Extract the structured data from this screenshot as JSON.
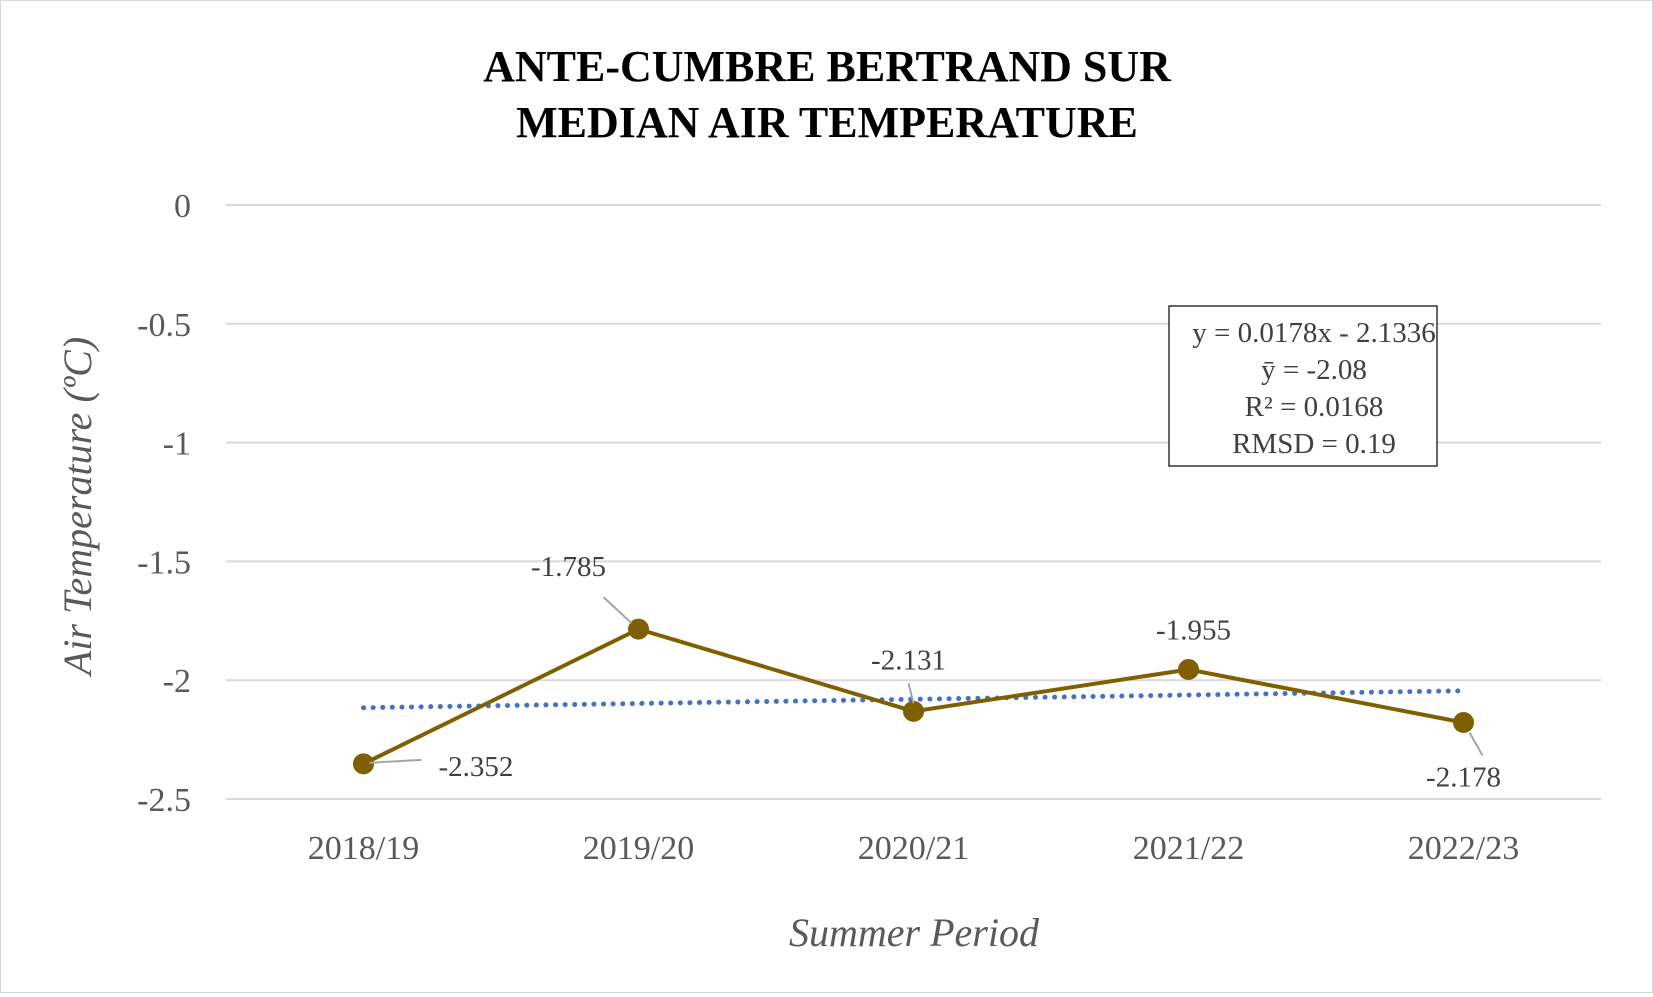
{
  "chart_data": {
    "type": "line",
    "title_lines": [
      "ANTE-CUMBRE BERTRAND SUR",
      "MEDIAN AIR TEMPERATURE"
    ],
    "xlabel": "Summer Period",
    "ylabel": "Air Temperature (ºC)",
    "categories": [
      "2018/19",
      "2019/20",
      "2020/21",
      "2021/22",
      "2022/23"
    ],
    "ylim": [
      -2.5,
      0
    ],
    "yticks": [
      0,
      -0.5,
      -1,
      -1.5,
      -2,
      -2.5
    ],
    "ytick_labels": [
      "0",
      "-0.5",
      "-1",
      "-1.5",
      "-2",
      "-2.5"
    ],
    "grid": true,
    "series": [
      {
        "values": [
          -2.352,
          -1.785,
          -2.131,
          -1.955,
          -2.178
        ],
        "labels": [
          "-2.352",
          "-1.785",
          "-2.131",
          "-1.955",
          "-2.178"
        ],
        "color": "#7f6000"
      }
    ],
    "trendline": {
      "type": "linear",
      "slope": 0.0178,
      "intercept": -2.1336,
      "color": "#4472c4",
      "style": "dotted"
    },
    "stats_box": {
      "lines": [
        "y = 0.0178x - 2.1336",
        "ȳ = -2.08",
        "R² = 0.0168",
        "RMSD = 0.19"
      ]
    }
  }
}
